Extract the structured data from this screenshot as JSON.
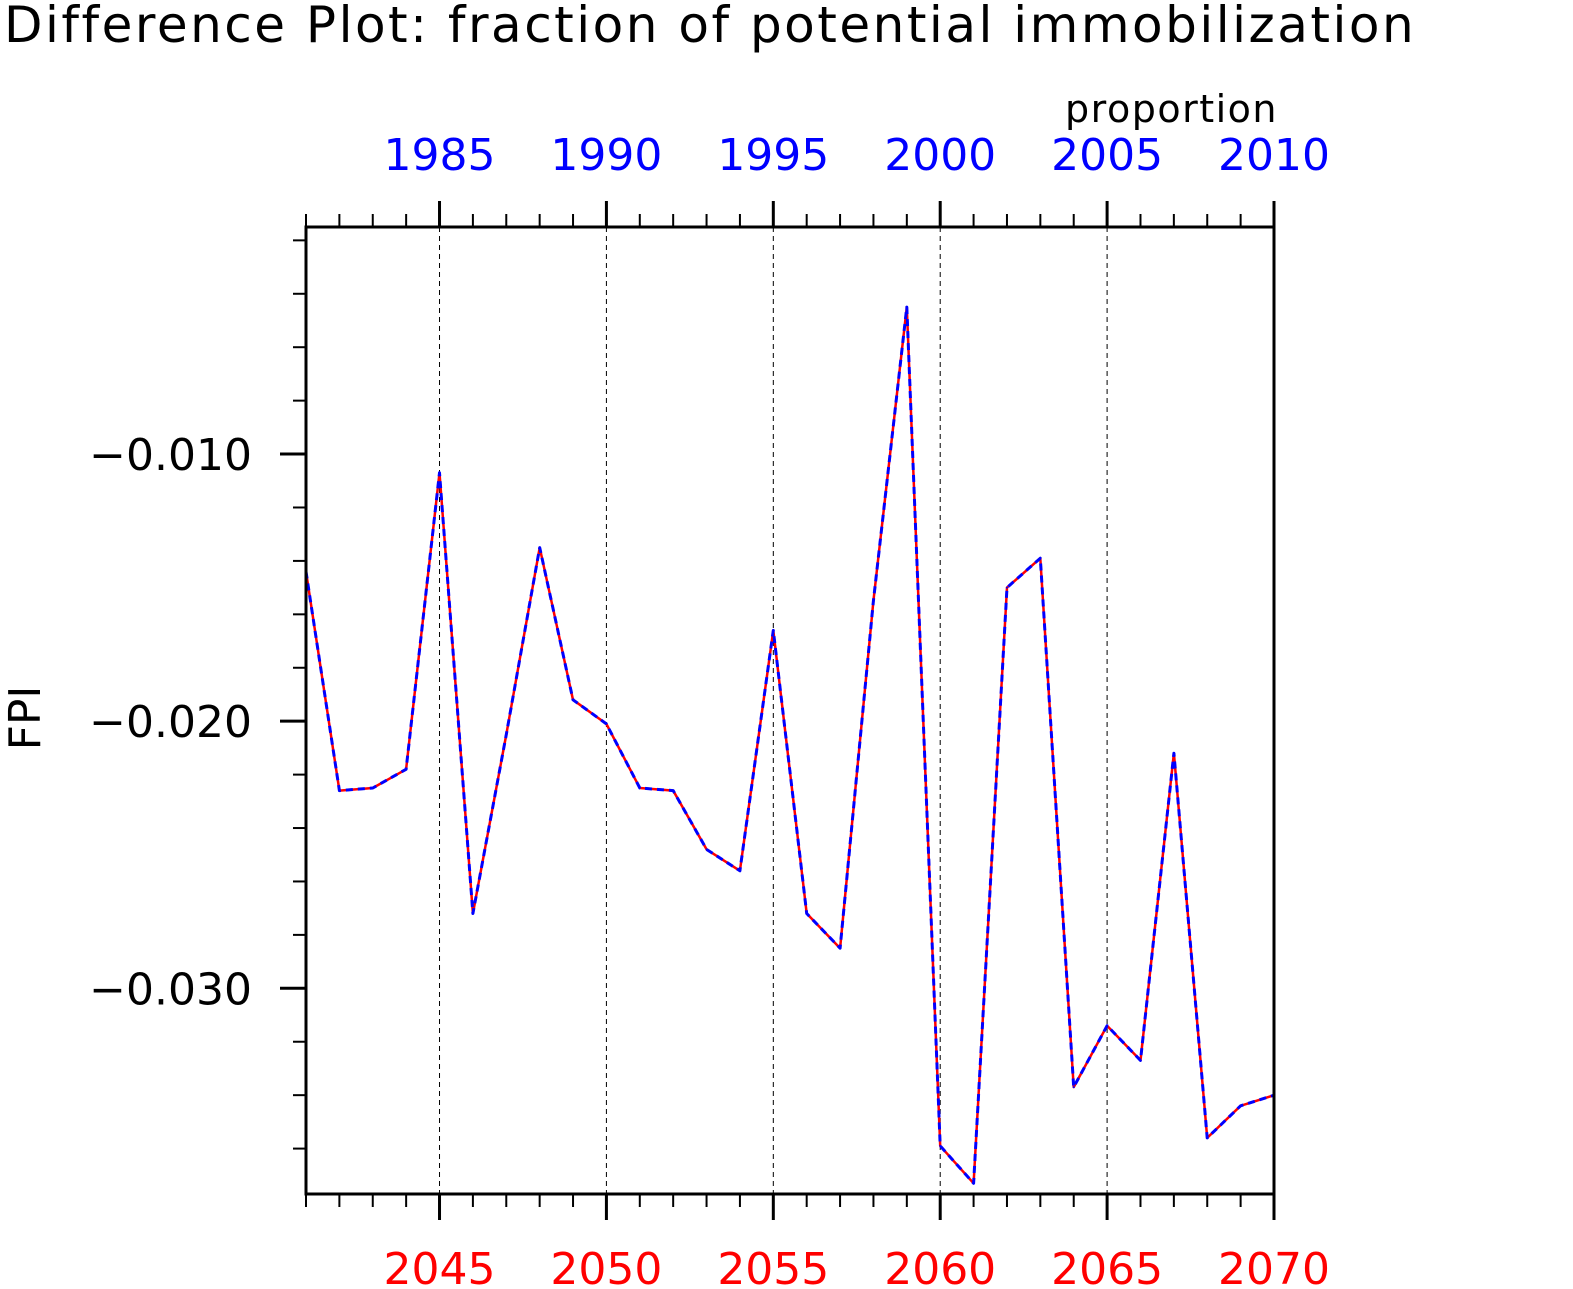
{
  "chart_data": {
    "type": "line",
    "title": "Difference Plot: fraction of potential immobilization",
    "units_label": "proportion",
    "ylabel": "FPI",
    "xlabel": "",
    "x_bottom": {
      "range": [
        2041,
        2070
      ],
      "ticks": [
        2045,
        2050,
        2055,
        2060,
        2065,
        2070
      ],
      "tick_labels": [
        "2045",
        "2050",
        "2055",
        "2060",
        "2065",
        "2070"
      ],
      "color": "#ff0000"
    },
    "x_top": {
      "range": [
        1981,
        2010
      ],
      "ticks": [
        1985,
        1990,
        1995,
        2000,
        2005,
        2010
      ],
      "tick_labels": [
        "1985",
        "1990",
        "1995",
        "2000",
        "2005",
        "2010"
      ],
      "color": "#0000ff"
    },
    "ylim": [
      -0.0377,
      -0.0015
    ],
    "y_ticks": [
      -0.01,
      -0.02,
      -0.03
    ],
    "y_tick_labels": [
      "−0.010",
      "−0.020",
      "−0.030"
    ],
    "y_minor_step": 0.002,
    "grid": "vertical dashed at major x ticks",
    "series": [
      {
        "color": "#ff0000",
        "style": "solid",
        "x": [
          2041,
          2042,
          2043,
          2044,
          2045,
          2046,
          2047,
          2048,
          2049,
          2050,
          2051,
          2052,
          2053,
          2054,
          2055,
          2056,
          2057,
          2058,
          2059,
          2060,
          2061,
          2062,
          2063,
          2064,
          2065,
          2066,
          2067,
          2068,
          2069,
          2070
        ],
        "values": [
          -0.0144,
          -0.0226,
          -0.0225,
          -0.0218,
          -0.0107,
          -0.0272,
          -0.0205,
          -0.0135,
          -0.0192,
          -0.0201,
          -0.0225,
          -0.0226,
          -0.0248,
          -0.0256,
          -0.0166,
          -0.0272,
          -0.0285,
          -0.0155,
          -0.0045,
          -0.0359,
          -0.0373,
          -0.015,
          -0.0139,
          -0.0337,
          -0.0314,
          -0.0327,
          -0.0212,
          -0.0356,
          -0.0344,
          -0.034
        ]
      },
      {
        "color": "#0000ff",
        "style": "dashed",
        "x": [
          1981,
          1982,
          1983,
          1984,
          1985,
          1986,
          1987,
          1988,
          1989,
          1990,
          1991,
          1992,
          1993,
          1994,
          1995,
          1996,
          1997,
          1998,
          1999,
          2000,
          2001,
          2002,
          2003,
          2004,
          2005,
          2006,
          2007,
          2008,
          2009,
          2010
        ],
        "values": [
          -0.0144,
          -0.0226,
          -0.0225,
          -0.0218,
          -0.0107,
          -0.0272,
          -0.0205,
          -0.0135,
          -0.0192,
          -0.0201,
          -0.0225,
          -0.0226,
          -0.0248,
          -0.0256,
          -0.0166,
          -0.0272,
          -0.0285,
          -0.0155,
          -0.0045,
          -0.0359,
          -0.0373,
          -0.015,
          -0.0139,
          -0.0337,
          -0.0314,
          -0.0327,
          -0.0212,
          -0.0356,
          -0.0344,
          -0.034
        ]
      }
    ]
  }
}
